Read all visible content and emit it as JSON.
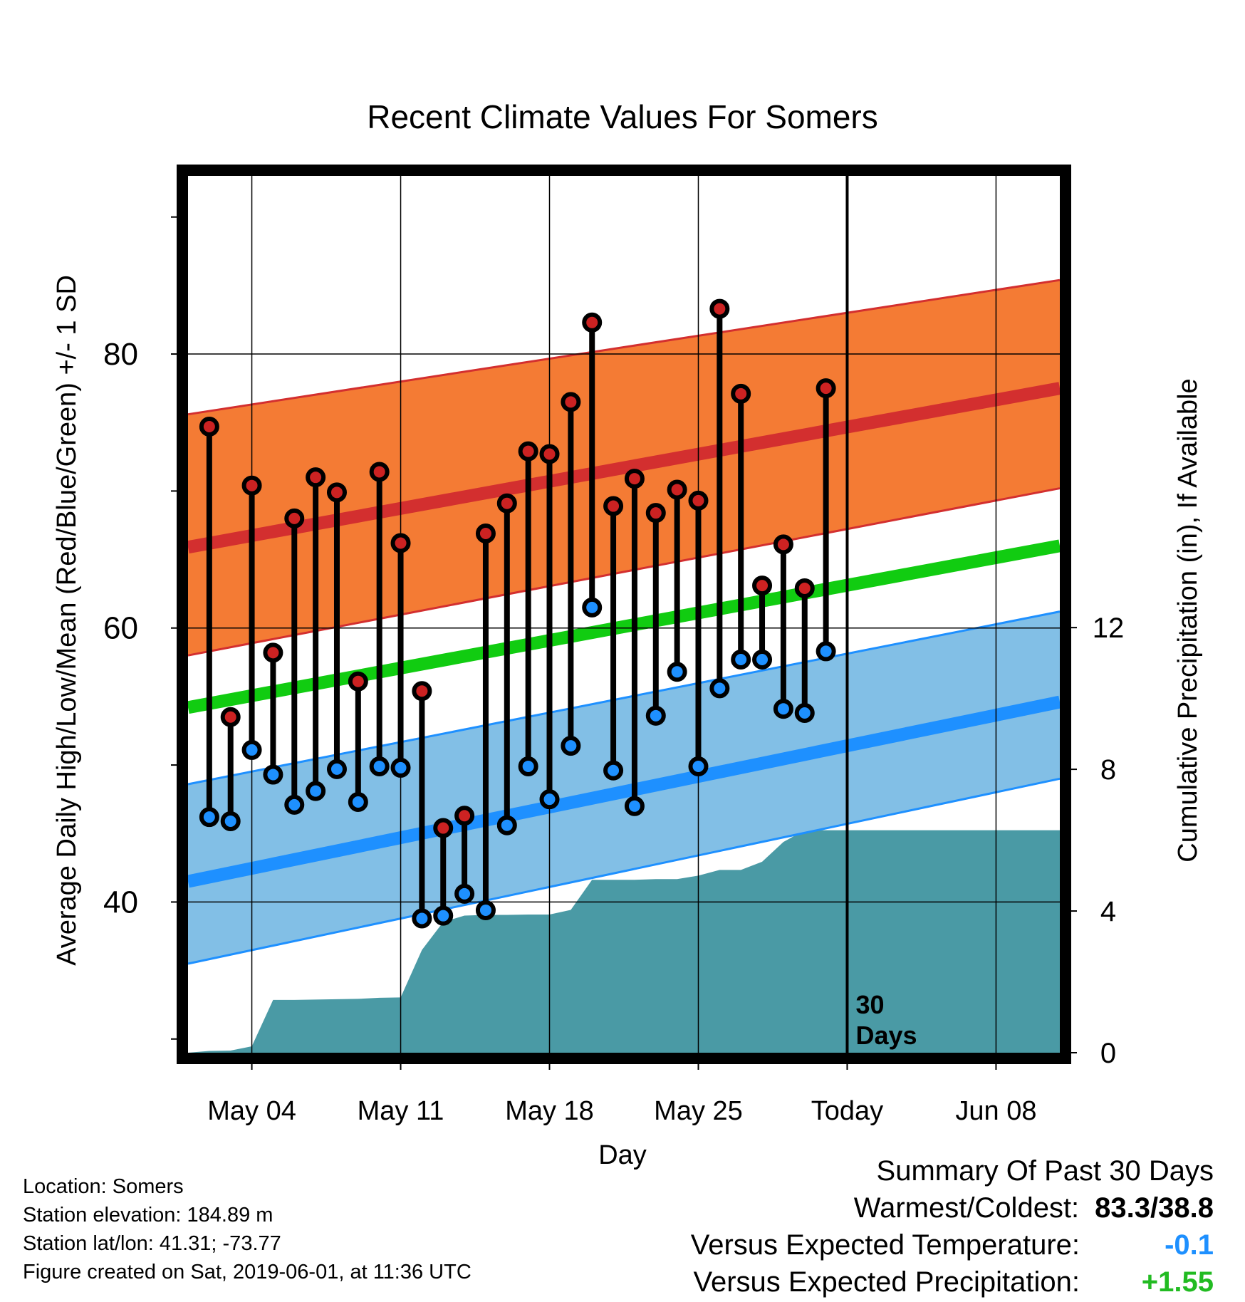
{
  "chart_data": {
    "type": "line",
    "title": "Recent Climate Values For Somers",
    "xlabel": "Day",
    "ylabel_left": "Average Daily High/Low/Mean (Red/Blue/Green) +/- 1 SD",
    "ylabel_right": "Cumulative Precipitation (in), If Available",
    "x_tick_labels": [
      "May 04",
      "May 11",
      "May 18",
      "May 25",
      "Today",
      "Jun 08"
    ],
    "x_tick_days": [
      3,
      10,
      17,
      24,
      31,
      38
    ],
    "xlim_days": [
      0,
      41
    ],
    "ylim_left": [
      29,
      93
    ],
    "y_left_ticks": [
      40,
      60,
      80
    ],
    "y_left_minor_ticks": [
      30,
      50,
      70,
      90
    ],
    "ylim_right": [
      0,
      24.75
    ],
    "y_right_ticks": [
      0,
      4,
      8,
      12
    ],
    "today_day": 31,
    "today_label": "30\nDays",
    "grid": true,
    "normal_high": {
      "start": 65.9,
      "end": 77.5
    },
    "normal_high_band": {
      "upper_start": 75.6,
      "upper_end": 85.4,
      "lower_start": 58.0,
      "lower_end": 70.2
    },
    "normal_low": {
      "start": 41.5,
      "end": 54.6
    },
    "normal_low_band": {
      "upper_start": 48.6,
      "upper_end": 61.2,
      "lower_start": 35.5,
      "lower_end": 49.0
    },
    "normal_mean": {
      "start": 54.2,
      "end": 66.0
    },
    "series": [
      {
        "name": "High",
        "color": "#cc2222",
        "days": [
          1,
          2,
          3,
          4,
          5,
          6,
          7,
          8,
          9,
          10,
          11,
          12,
          13,
          14,
          15,
          16,
          17,
          18,
          19,
          20,
          21,
          22,
          23,
          24,
          25,
          26,
          27,
          28,
          29,
          30
        ],
        "values": [
          74.7,
          53.5,
          70.4,
          58.2,
          68.0,
          71.0,
          69.9,
          56.1,
          71.4,
          66.2,
          55.4,
          45.4,
          46.3,
          66.9,
          69.1,
          72.9,
          72.7,
          76.5,
          82.3,
          68.9,
          70.9,
          68.4,
          70.1,
          69.3,
          83.3,
          77.1,
          63.1,
          66.1,
          62.9,
          77.5
        ]
      },
      {
        "name": "Low",
        "color": "#1e90ff",
        "days": [
          1,
          2,
          3,
          4,
          5,
          6,
          7,
          8,
          9,
          10,
          11,
          12,
          13,
          14,
          15,
          16,
          17,
          18,
          19,
          20,
          21,
          22,
          23,
          24,
          25,
          26,
          27,
          28,
          29,
          30
        ],
        "values": [
          46.2,
          45.9,
          51.1,
          49.3,
          47.1,
          48.1,
          49.7,
          47.3,
          49.9,
          49.8,
          38.8,
          39.0,
          40.6,
          39.4,
          45.6,
          49.9,
          47.5,
          51.4,
          61.5,
          49.6,
          47.0,
          53.6,
          56.8,
          49.9,
          55.6,
          57.7,
          57.7,
          54.1,
          53.8,
          58.3
        ]
      }
    ],
    "cumulative_precipitation": {
      "color": "#4a9aa5",
      "days": [
        0,
        1,
        2,
        3,
        4,
        5,
        6,
        7,
        8,
        9,
        10,
        11,
        12,
        13,
        14,
        15,
        16,
        17,
        18,
        19,
        20,
        21,
        22,
        23,
        24,
        25,
        26,
        27,
        28,
        29,
        30,
        31,
        41
      ],
      "values": [
        0,
        0.05,
        0.06,
        0.18,
        1.49,
        1.49,
        1.5,
        1.51,
        1.52,
        1.55,
        1.56,
        2.9,
        3.69,
        3.87,
        3.89,
        3.89,
        3.9,
        3.9,
        4.03,
        4.88,
        4.88,
        4.88,
        4.9,
        4.9,
        5.0,
        5.16,
        5.16,
        5.39,
        5.95,
        6.28,
        6.28,
        6.28,
        6.28
      ]
    }
  },
  "info": {
    "location": "Location: Somers",
    "elevation": "Station elevation: 184.89 m",
    "latlon": "Station lat/lon: 41.31; -73.77",
    "created": "Figure created on Sat, 2019-06-01, at 11:36 UTC"
  },
  "summary": {
    "title": "Summary Of Past 30 Days",
    "warm_cold_label": "Warmest/Coldest:",
    "warm_cold_value": "83.3/38.8",
    "temp_label": "Versus Expected Temperature:",
    "temp_value": "-0.1",
    "temp_color": "#1e90ff",
    "precip_label": "Versus Expected Precipitation:",
    "precip_value": "+1.55",
    "precip_color": "#22bb22"
  },
  "colors": {
    "high_band": "#f47b34",
    "high_band_edge": "#d32f2f",
    "normal_high_line": "#d32f2f",
    "low_band": "#82bfe6",
    "low_band_edge": "#1e90ff",
    "normal_low_line": "#1e90ff",
    "normal_mean_line": "#11cc11",
    "precip_fill": "#4a9aa5"
  }
}
